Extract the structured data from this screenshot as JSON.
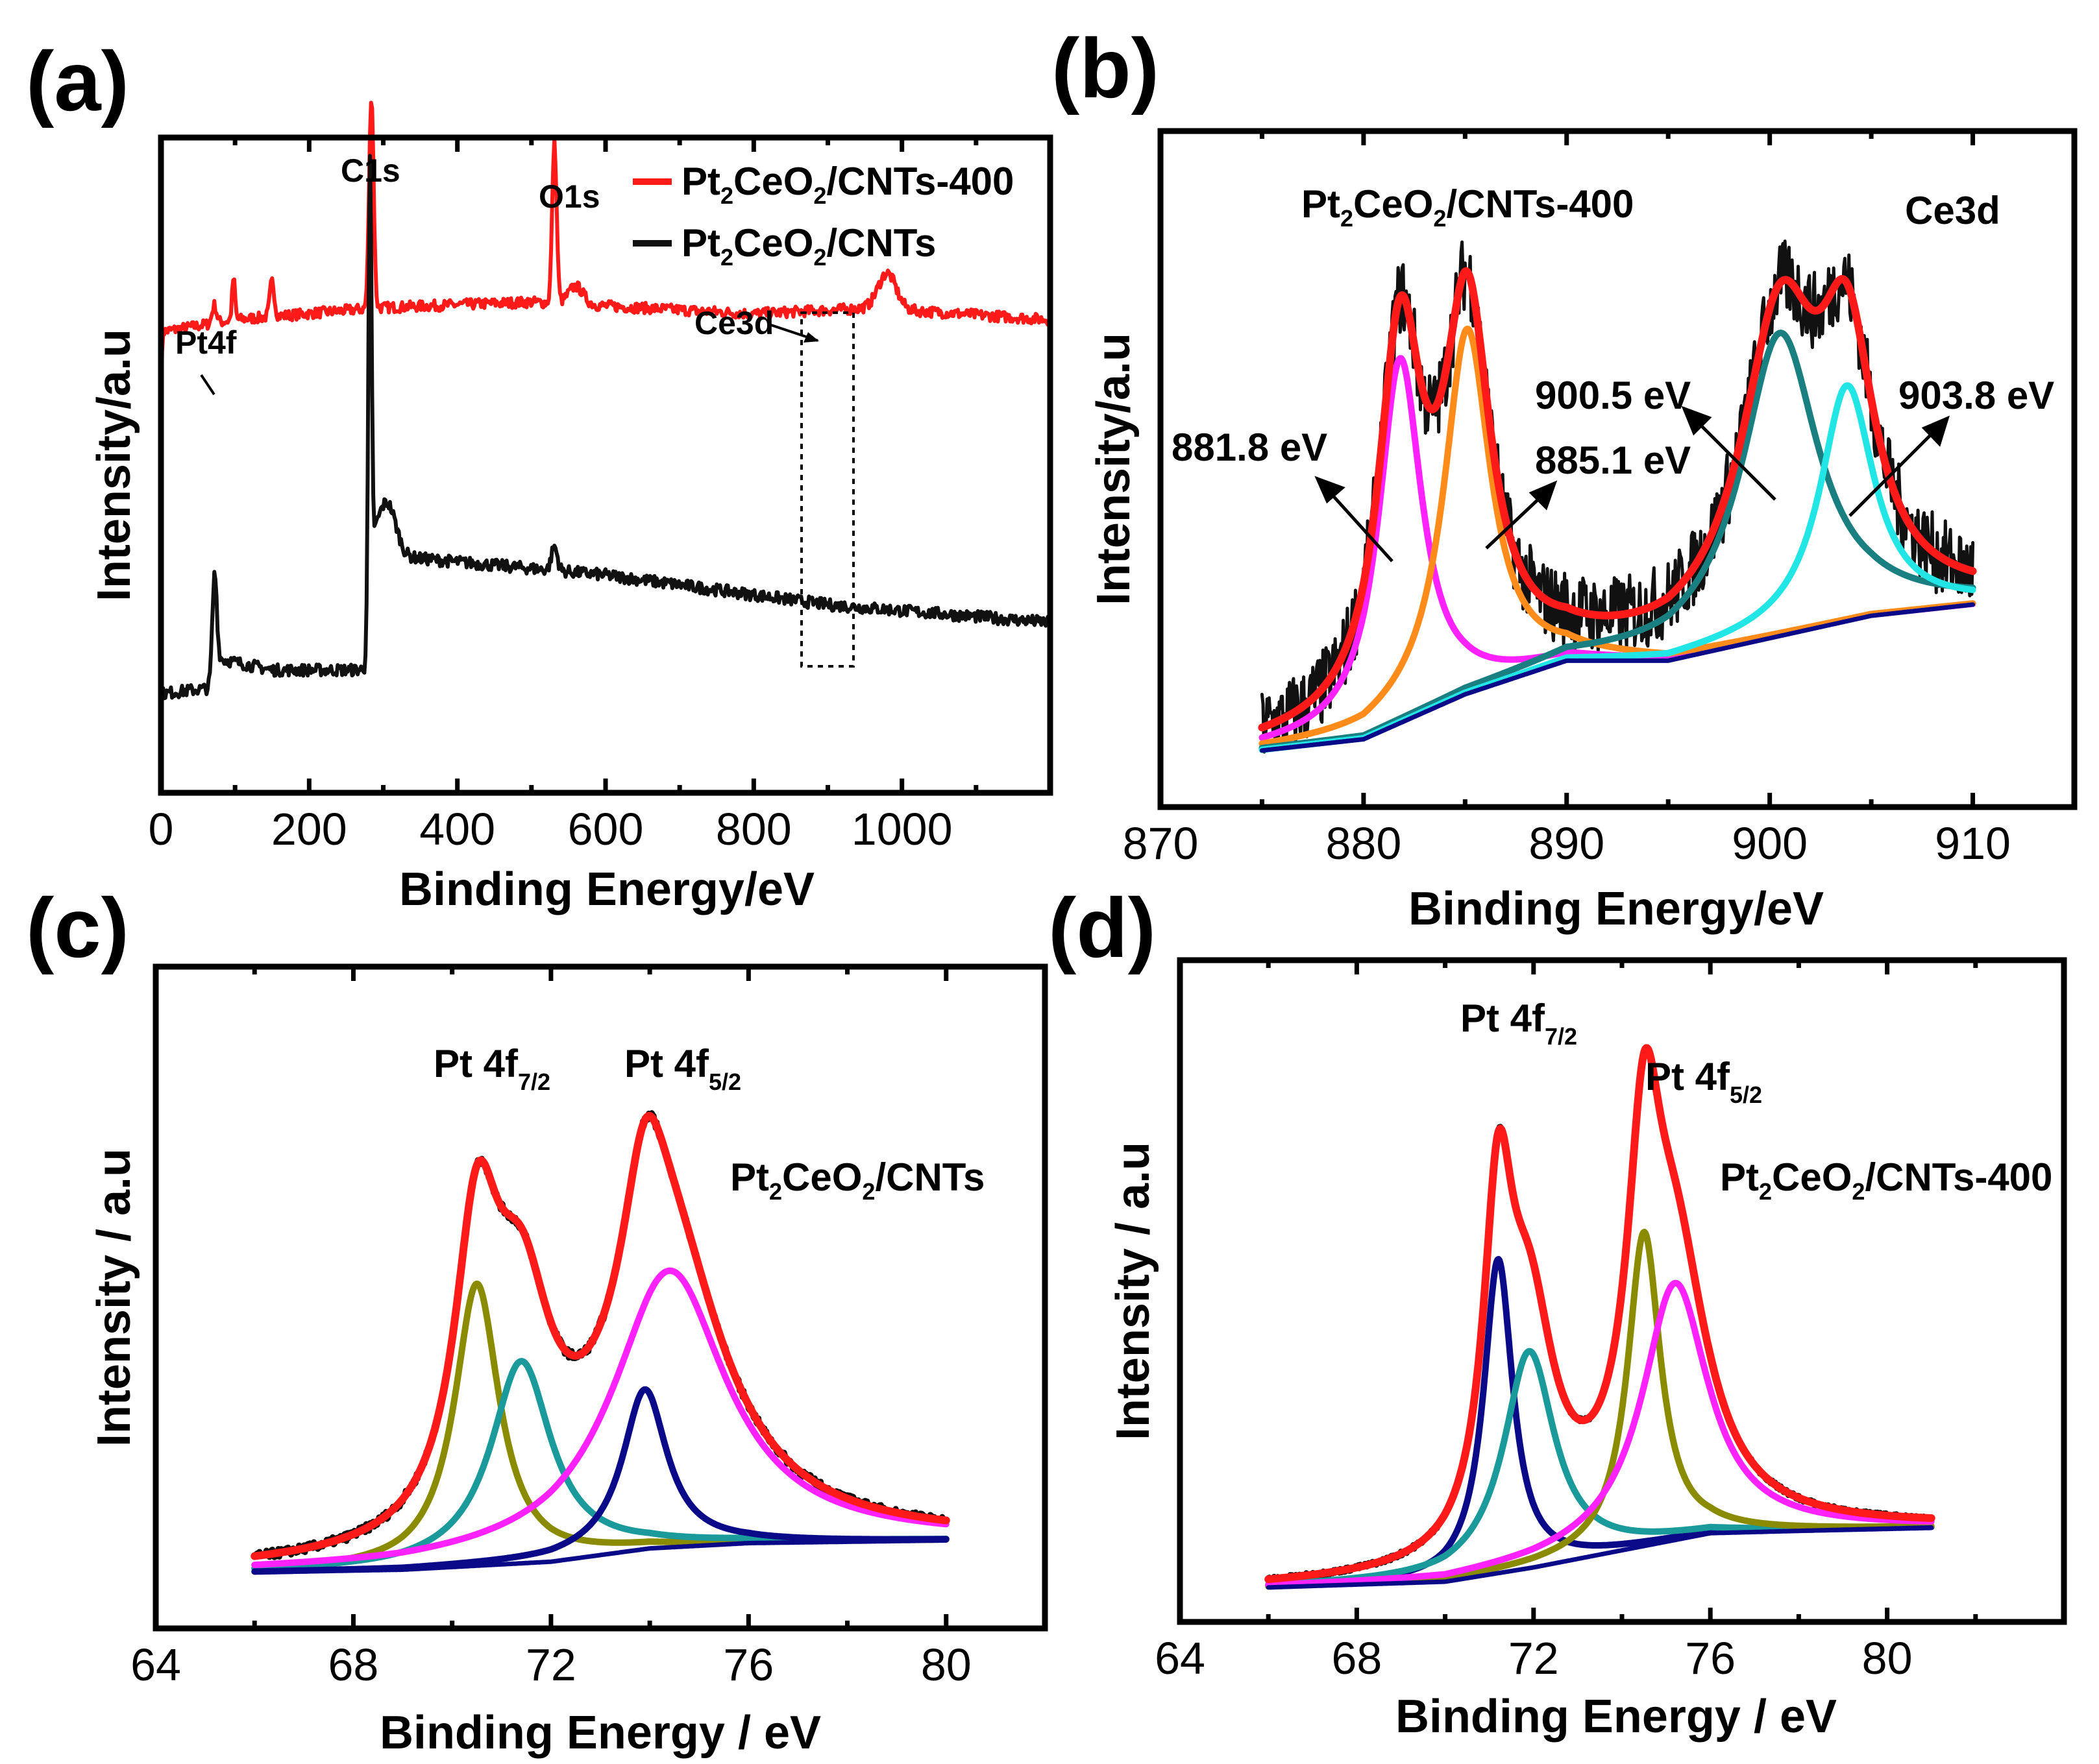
{
  "colors": {
    "red": "#ff1a1a",
    "black": "#111111",
    "olive": "#8b8b00",
    "teal": "#1a9a9a",
    "magenta": "#ff22ff",
    "navy": "#0a0a88",
    "orange": "#ff8c1a",
    "cyan": "#22e6e6",
    "dteal": "#1a7f80"
  },
  "chart_data": [
    {
      "id": "a",
      "panel_label": "(a)",
      "type": "line",
      "xlabel": "Binding Energy/eV",
      "ylabel": "Intensity/a.u",
      "xlim": [
        0,
        1200
      ],
      "ylim": [
        0,
        100
      ],
      "xticks": [
        0,
        200,
        400,
        600,
        800,
        1000
      ],
      "series": [
        {
          "name": "Pt2CeO2/CNTs-400",
          "color": "red",
          "noise": 0.9,
          "baseline": [
            [
              0,
              55
            ],
            [
              2,
              72
            ],
            [
              100,
              74
            ],
            [
              290,
              76
            ],
            [
              500,
              77
            ],
            [
              800,
              75
            ],
            [
              960,
              76
            ],
            [
              1200,
              74
            ]
          ],
          "peaks": [
            [
              72,
              3,
              3
            ],
            [
              98,
              7,
              2
            ],
            [
              150,
              6,
              3
            ],
            [
              284,
              36,
              3
            ],
            [
              531,
              27,
              3
            ],
            [
              560,
              3,
              10
            ],
            [
              980,
              6,
              12
            ]
          ]
        },
        {
          "name": "Pt2CeO2/CNTs",
          "color": "black",
          "noise": 1.0,
          "baseline": [
            [
              0,
              11
            ],
            [
              70,
              12
            ],
            [
              75,
              17
            ],
            [
              150,
              15
            ],
            [
              275,
              15
            ],
            [
              285,
              36
            ],
            [
              310,
              35
            ],
            [
              330,
              34
            ],
            [
              600,
              31
            ],
            [
              900,
              26
            ],
            [
              1200,
              23
            ]
          ],
          "peaks": [
            [
              72,
              17,
              3
            ],
            [
              282,
              70,
              2
            ],
            [
              305,
              8,
              12
            ],
            [
              531,
              4,
              4
            ]
          ]
        }
      ],
      "legend": [
        {
          "text": "Pt",
          "sub": "2",
          "rest": "CeO",
          "sub2": "2",
          "tail": "/CNTs-400",
          "color": "red"
        },
        {
          "text": "Pt",
          "sub": "2",
          "rest": "CeO",
          "sub2": "2",
          "tail": "/CNTs",
          "color": "black"
        }
      ],
      "annotations": {
        "pt4f": "Pt4f",
        "c1s": "C1s",
        "o1s": "O1s",
        "ce3d": "Ce3d"
      },
      "box_x": [
        860,
        930
      ]
    },
    {
      "id": "b",
      "panel_label": "(b)",
      "type": "line",
      "xlabel": "Binding Energy/eV",
      "ylabel": "Intensity/a.u",
      "xlim": [
        870,
        915
      ],
      "ylim": [
        0,
        100
      ],
      "xticks": [
        870,
        880,
        890,
        900,
        910
      ],
      "title": {
        "text": "Pt",
        "sub": "2",
        "rest": "CeO",
        "sub2": "2",
        "tail": "/CNTs-400"
      },
      "label": "Ce3d",
      "xrange": [
        875,
        910
      ],
      "background": [
        [
          875,
          5
        ],
        [
          880,
          7
        ],
        [
          885,
          15
        ],
        [
          890,
          21
        ],
        [
          895,
          21
        ],
        [
          900,
          25
        ],
        [
          905,
          29
        ],
        [
          910,
          31
        ]
      ],
      "components": [
        {
          "name": "881.8 eV",
          "center": 881.8,
          "amp": 65,
          "width": 1.3,
          "color": "magenta"
        },
        {
          "name": "885.1 eV",
          "center": 885.1,
          "amp": 65,
          "width": 1.4,
          "color": "orange"
        },
        {
          "name": "900.5 eV",
          "center": 900.5,
          "amp": 54,
          "width": 2.3,
          "color": "dteal"
        },
        {
          "name": "903.8 eV",
          "center": 903.8,
          "amp": 42,
          "width": 1.6,
          "color": "cyan"
        }
      ],
      "raw_color": "black",
      "raw_noise": 7,
      "envelope_color": "red",
      "peak_labels": [
        "881.8 eV",
        "885.1 eV",
        "900.5 eV",
        "903.8 eV"
      ]
    },
    {
      "id": "c",
      "panel_label": "(c)",
      "type": "line",
      "xlabel": "Binding Energy / eV",
      "ylabel": "Intensity / a.u",
      "xlim": [
        64,
        82
      ],
      "ylim": [
        0,
        100
      ],
      "xticks": [
        64,
        68,
        72,
        76,
        80
      ],
      "title": {
        "text": "Pt",
        "sub": "2",
        "rest": "CeO",
        "sub2": "2",
        "tail": "/CNTs"
      },
      "xrange": [
        66,
        80
      ],
      "background": [
        [
          66,
          2
        ],
        [
          69,
          2.5
        ],
        [
          72,
          4
        ],
        [
          74,
          6.5
        ],
        [
          76,
          7.5
        ],
        [
          80,
          8
        ]
      ],
      "components": [
        {
          "center": 70.5,
          "amp": 53,
          "width": 0.55,
          "color": "olive"
        },
        {
          "center": 71.4,
          "amp": 38,
          "width": 0.75,
          "color": "teal"
        },
        {
          "center": 74.4,
          "amp": 52,
          "width": 1.4,
          "color": "magenta"
        },
        {
          "center": 73.9,
          "amp": 30,
          "width": 0.55,
          "color": "navy"
        }
      ],
      "raw_color": "black",
      "raw_noise": 0.8,
      "envelope_color": "red",
      "peak_labels": [
        {
          "main": "Pt 4f",
          "sub": "7/2"
        },
        {
          "main": "Pt 4f",
          "sub": "5/2"
        }
      ]
    },
    {
      "id": "d",
      "panel_label": "(d)",
      "type": "line",
      "xlabel": "Binding Energy / eV",
      "ylabel": "Intensity / a.u",
      "xlim": [
        64,
        84
      ],
      "ylim": [
        0,
        100
      ],
      "xticks": [
        64,
        68,
        72,
        76,
        80
      ],
      "title": {
        "text": "Pt",
        "sub": "2",
        "rest": "CeO",
        "sub2": "2",
        "tail": "/CNTs-400"
      },
      "xrange": [
        66,
        81
      ],
      "background": [
        [
          66,
          1.5
        ],
        [
          70,
          2.5
        ],
        [
          72,
          5
        ],
        [
          74,
          8
        ],
        [
          76,
          11
        ],
        [
          81,
          12
        ]
      ],
      "components": [
        {
          "center": 71.2,
          "amp": 55,
          "width": 0.4,
          "color": "navy"
        },
        {
          "center": 71.9,
          "amp": 38,
          "width": 0.7,
          "color": "teal"
        },
        {
          "center": 74.5,
          "amp": 55,
          "width": 0.45,
          "color": "olive"
        },
        {
          "center": 75.2,
          "amp": 45,
          "width": 0.9,
          "color": "magenta"
        }
      ],
      "raw_color": "black",
      "raw_noise": 0.4,
      "envelope_color": "red",
      "peak_labels": [
        {
          "main": "Pt 4f",
          "sub": "7/2"
        },
        {
          "main": "Pt 4f",
          "sub": "5/2"
        }
      ]
    }
  ]
}
